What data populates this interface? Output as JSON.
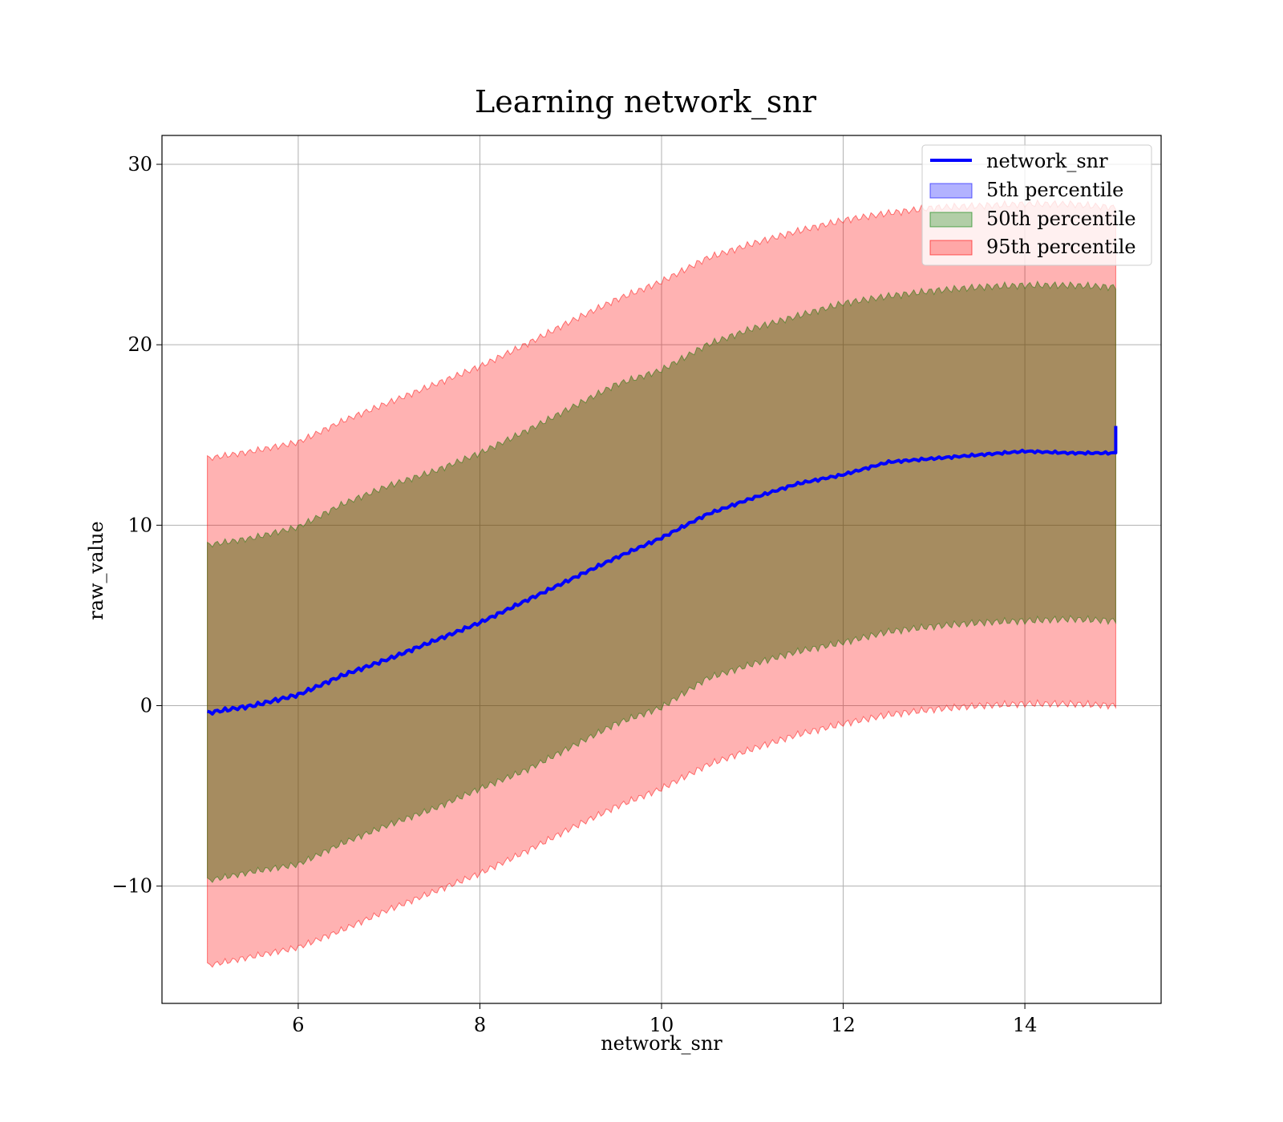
{
  "chart_data": {
    "type": "area",
    "title": "Learning network_snr",
    "xlabel": "network_snr",
    "ylabel": "raw_value",
    "xlim": [
      4.5,
      15.5
    ],
    "ylim": [
      -16.5,
      31.6
    ],
    "xticks": [
      6,
      8,
      10,
      12,
      14
    ],
    "yticks": [
      -10,
      0,
      10,
      20,
      30
    ],
    "xtick_labels": [
      "6",
      "8",
      "10",
      "12",
      "14"
    ],
    "ytick_labels": [
      "−10",
      "0",
      "10",
      "20",
      "30"
    ],
    "grid": true,
    "legend_position": "top-right",
    "legend": [
      {
        "label": "network_snr",
        "kind": "line",
        "color": "#0000ff"
      },
      {
        "label": "5th percentile",
        "kind": "patch",
        "color": "#0000ff"
      },
      {
        "label": "50th percentile",
        "kind": "patch",
        "color": "#008000"
      },
      {
        "label": "95th percentile",
        "kind": "patch",
        "color": "#ff0000"
      }
    ],
    "x": [
      5.0,
      5.5,
      6.0,
      6.5,
      7.0,
      7.5,
      8.0,
      8.5,
      9.0,
      9.5,
      10.0,
      10.5,
      11.0,
      11.5,
      12.0,
      12.5,
      13.0,
      13.5,
      14.0,
      14.5,
      15.0
    ],
    "median_line": {
      "name": "network_snr",
      "color": "#0000ff",
      "values": [
        -0.4,
        0.0,
        0.6,
        1.7,
        2.6,
        3.6,
        4.6,
        5.8,
        7.0,
        8.2,
        9.3,
        10.6,
        11.5,
        12.3,
        12.8,
        13.5,
        13.7,
        13.9,
        14.1,
        14.0,
        14.0
      ]
    },
    "bands": [
      {
        "name": "50th percentile",
        "color": "#008000",
        "lower": [
          -9.7,
          -9.2,
          -8.8,
          -7.6,
          -6.6,
          -5.7,
          -4.6,
          -3.6,
          -2.3,
          -1.0,
          -0.1,
          1.5,
          2.3,
          3.0,
          3.5,
          4.1,
          4.4,
          4.6,
          4.7,
          4.8,
          4.7
        ],
        "upper": [
          8.9,
          9.3,
          9.9,
          11.2,
          12.2,
          13.0,
          14.0,
          15.2,
          16.5,
          17.8,
          18.6,
          20.0,
          20.9,
          21.6,
          22.3,
          22.7,
          23.0,
          23.2,
          23.3,
          23.3,
          23.2
        ]
      },
      {
        "name": "95th percentile",
        "color": "#ff0000",
        "lower": [
          -14.4,
          -13.9,
          -13.4,
          -12.4,
          -11.3,
          -10.3,
          -9.3,
          -8.1,
          -6.8,
          -5.6,
          -4.6,
          -3.3,
          -2.4,
          -1.6,
          -1.0,
          -0.5,
          -0.2,
          0.0,
          0.1,
          0.1,
          0.0
        ],
        "upper": [
          13.7,
          14.1,
          14.6,
          15.8,
          16.8,
          17.8,
          18.8,
          20.0,
          21.3,
          22.5,
          23.5,
          24.8,
          25.6,
          26.3,
          26.9,
          27.3,
          27.6,
          27.7,
          27.8,
          27.8,
          27.6
        ]
      }
    ]
  }
}
